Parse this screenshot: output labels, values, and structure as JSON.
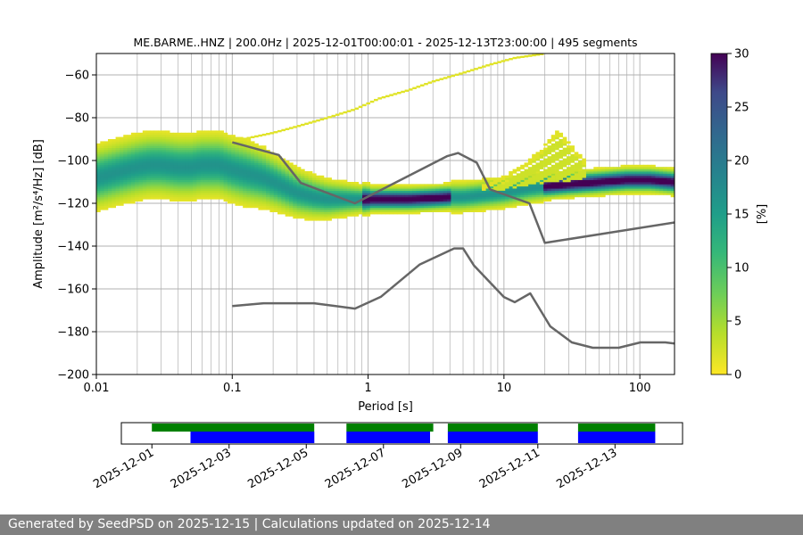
{
  "chart_data": [
    {
      "type": "heatmap",
      "title": "ME.BARME..HNZ | 200.0Hz | 2025-12-01T00:00:01 - 2025-12-13T23:00:00 | 495 segments",
      "xlabel": "Period [s]",
      "ylabel": "Amplitude [m²/s⁴/Hz] [dB]",
      "xscale": "log",
      "xlim": [
        0.01,
        180
      ],
      "ylim": [
        -200,
        -50
      ],
      "xticks": [
        0.01,
        0.1,
        1,
        10,
        100
      ],
      "xtick_labels": [
        "0.01",
        "0.1",
        "1",
        "10",
        "100"
      ],
      "yticks": [
        -200,
        -180,
        -160,
        -140,
        -120,
        -100,
        -80,
        -60
      ],
      "grid": true,
      "colorbar": {
        "label": "[%]",
        "range": [
          0,
          30
        ],
        "ticks": [
          0,
          5,
          10,
          15,
          20,
          25,
          30
        ],
        "colormap": "viridis_r"
      },
      "mode_curve": {
        "name": "mode",
        "period": [
          0.01,
          0.015,
          0.02,
          0.025,
          0.03,
          0.04,
          0.05,
          0.06,
          0.08,
          0.1,
          0.13,
          0.17,
          0.22,
          0.3,
          0.4,
          0.5,
          0.7,
          1,
          1.5,
          2,
          3,
          4,
          5,
          7,
          10,
          15,
          20,
          30,
          50,
          80,
          120,
          180
        ],
        "db": [
          -108,
          -105,
          -103,
          -102,
          -102,
          -103,
          -103,
          -102,
          -102,
          -104,
          -106,
          -108,
          -111,
          -115,
          -117,
          -118,
          -118,
          -118,
          -118,
          -118,
          -117.5,
          -117,
          -117,
          -116,
          -115,
          -113,
          -112,
          -111,
          -110,
          -109,
          -109,
          -110
        ]
      },
      "upper_branch": {
        "period": [
          0.1,
          0.2,
          0.3,
          0.5,
          0.8,
          1.2,
          2,
          3,
          5,
          8,
          12,
          20
        ],
        "db": [
          -91,
          -87,
          -84,
          -80,
          -76,
          -71,
          -67,
          -63,
          -59,
          -55,
          -52,
          -50
        ]
      },
      "secondary_lobe": {
        "period": [
          7,
          10,
          14,
          20,
          25,
          30,
          40
        ],
        "db": [
          -112,
          -108,
          -102,
          -93,
          -86,
          -92,
          -100
        ]
      },
      "noise_models": [
        {
          "period": [
            0.1,
            0.22,
            0.32,
            0.8,
            3.8,
            4.6,
            6.3,
            7.9,
            15.4,
            20,
            354.8
          ],
          "db": [
            -91.5,
            -97.4,
            -110.5,
            -120,
            -98,
            -96.5,
            -101,
            -113.5,
            -120,
            -138.5,
            -126
          ]
        },
        {
          "period": [
            0.1,
            0.17,
            0.4,
            0.8,
            1.24,
            2.4,
            4.3,
            5,
            6,
            10,
            12,
            15.6,
            21.9,
            31.6,
            45,
            70,
            101,
            154,
            328,
            600
          ],
          "db": [
            -168,
            -166.7,
            -166.7,
            -169.2,
            -163.7,
            -148.6,
            -141.1,
            -141.1,
            -149,
            -163.8,
            -166.2,
            -162.1,
            -177.5,
            -185,
            -187.5,
            -187.5,
            -185,
            -185,
            -187.5,
            -184.4
          ]
        }
      ]
    },
    {
      "type": "timeline",
      "xtick_labels": [
        "2025-12-01",
        "2025-12-03",
        "2025-12-05",
        "2025-12-07",
        "2025-12-09",
        "2025-12-11",
        "2025-12-13"
      ],
      "xlim": [
        "2025-11-30T05:00",
        "2025-12-14T18:00"
      ],
      "series": [
        {
          "color": "#008000",
          "intervals": [
            [
              "2025-12-01T00:00",
              "2025-12-05T05:00"
            ],
            [
              "2025-12-06T01:00",
              "2025-12-08T07:00"
            ],
            [
              "2025-12-08T16:00",
              "2025-12-11T00:00"
            ],
            [
              "2025-12-12T01:00",
              "2025-12-14T01:00"
            ]
          ]
        },
        {
          "color": "#0000ff",
          "intervals": [
            [
              "2025-12-02T00:00",
              "2025-12-04T23:30"
            ],
            [
              "2025-12-04T00:30",
              "2025-12-05T05:00"
            ],
            [
              "2025-12-06T01:00",
              "2025-12-08T05:00"
            ],
            [
              "2025-12-08T16:00",
              "2025-12-11T00:00"
            ],
            [
              "2025-12-12T01:00",
              "2025-12-14T01:00"
            ]
          ]
        }
      ]
    }
  ],
  "footer": {
    "text": "Generated by SeedPSD on 2025-12-15 | Calculations updated on 2025-12-14"
  }
}
